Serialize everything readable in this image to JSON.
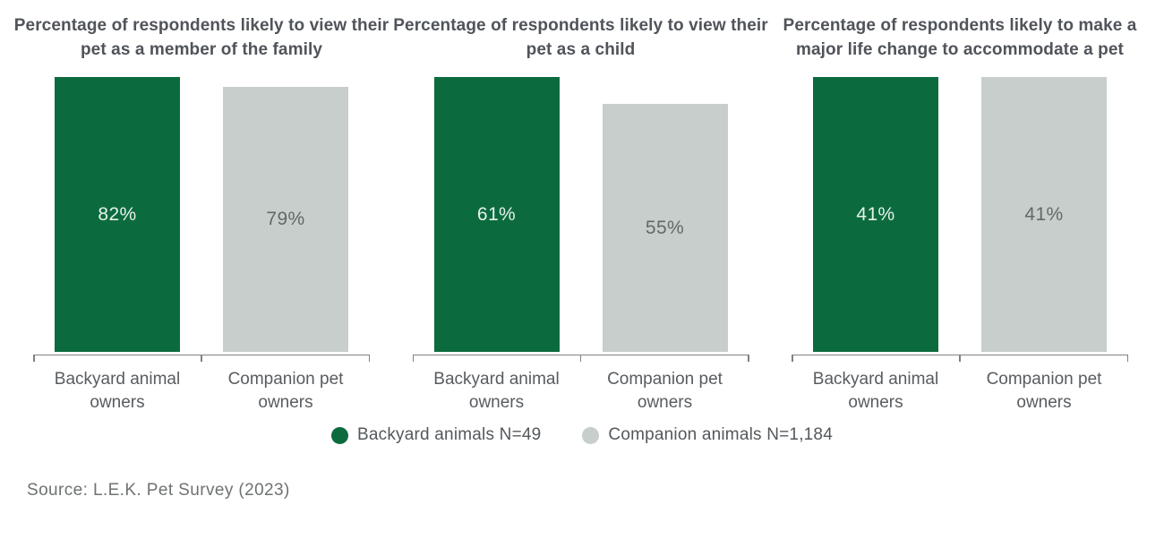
{
  "colors": {
    "backyard_green": "#0c6b3e",
    "companion_gray": "#c7cecb"
  },
  "chart_data": [
    {
      "type": "bar",
      "title": "Percentage of respondents likely to view their pet as a member of the family",
      "categories": [
        "Backyard animal owners",
        "Companion pet owners"
      ],
      "values": [
        82,
        79
      ],
      "labels": [
        "82%",
        "79%"
      ],
      "unit": "%",
      "layout_hint": "bars scaled so tallest bar fills plot height; value labels centered inside bars; no y-axis shown"
    },
    {
      "type": "bar",
      "title": "Percentage of respondents likely to view their pet as a child",
      "categories": [
        "Backyard animal owners",
        "Companion pet owners"
      ],
      "values": [
        61,
        55
      ],
      "labels": [
        "61%",
        "55%"
      ],
      "unit": "%",
      "layout_hint": "bars scaled so tallest bar fills plot height; value labels centered inside bars; no y-axis shown"
    },
    {
      "type": "bar",
      "title": "Percentage of respondents likely to make a major life change to accommodate a pet",
      "categories": [
        "Backyard animal owners",
        "Companion pet owners"
      ],
      "values": [
        41,
        41
      ],
      "labels": [
        "41%",
        "41%"
      ],
      "unit": "%",
      "layout_hint": "bars scaled so tallest bar fills plot height; value labels centered inside bars; no y-axis shown"
    }
  ],
  "legend": {
    "items": [
      {
        "label": "Backyard animals N=49",
        "color": "#0c6b3e"
      },
      {
        "label": "Companion animals N=1,184",
        "color": "#c7cecb"
      }
    ]
  },
  "source": "Source: L.E.K. Pet Survey (2023)"
}
